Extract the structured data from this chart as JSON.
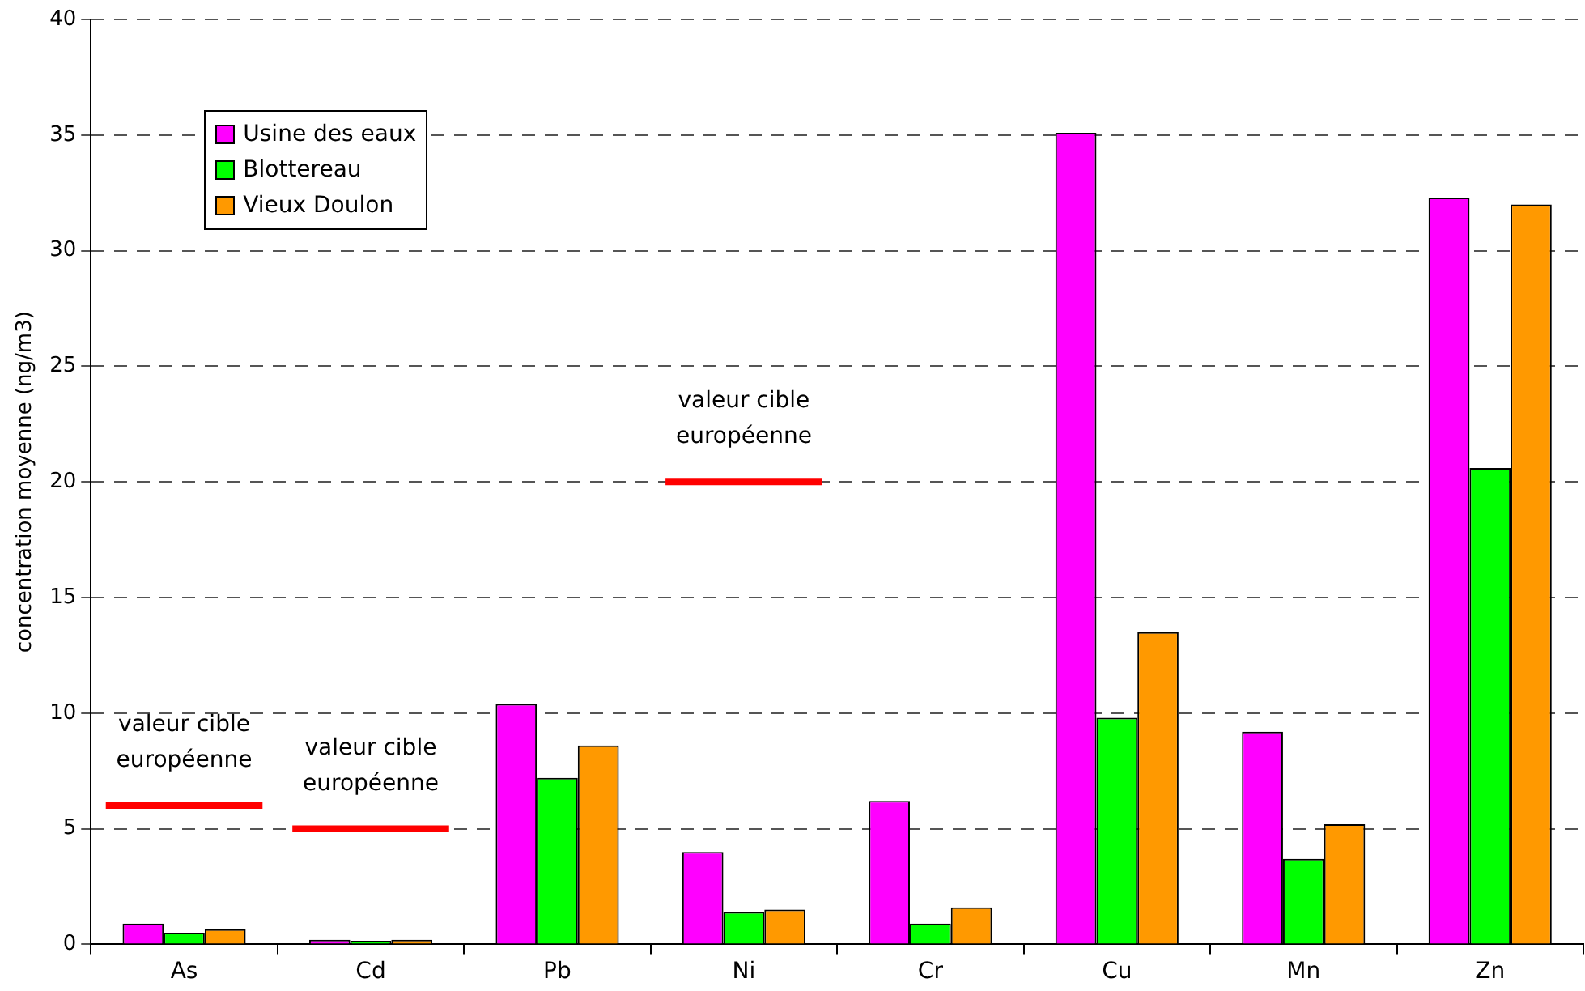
{
  "chart_data": {
    "type": "bar",
    "ylabel": "concentration moyenne (ng/m3)",
    "categories": [
      "As",
      "Cd",
      "Pb",
      "Ni",
      "Cr",
      "Cu",
      "Mn",
      "Zn"
    ],
    "series": [
      {
        "name": "Usine des eaux",
        "color": "#ff00ff",
        "values": [
          0.9,
          0.2,
          10.4,
          4.0,
          6.2,
          35.1,
          9.2,
          32.3
        ]
      },
      {
        "name": "Blottereau",
        "color": "#00ff00",
        "values": [
          0.5,
          0.15,
          7.2,
          1.4,
          0.9,
          9.8,
          3.7,
          20.6
        ]
      },
      {
        "name": "Vieux Doulon",
        "color": "#ff9900",
        "values": [
          0.65,
          0.2,
          8.6,
          1.5,
          1.6,
          13.5,
          5.2,
          32.0
        ]
      }
    ],
    "ylim": [
      0,
      40
    ],
    "yticks": [
      0,
      5,
      10,
      15,
      20,
      25,
      30,
      35,
      40
    ],
    "grid": "y",
    "legend": "top left",
    "ref_lines": [
      {
        "axis": "y",
        "value": 6,
        "color": "#ff0000"
      },
      {
        "axis": "y",
        "value": 5,
        "color": "#ff0000"
      },
      {
        "axis": "y",
        "value": 20,
        "color": "#ff0000"
      }
    ],
    "annotations": [
      {
        "text": "valeur cible\neuropéenne",
        "x": "As",
        "y": 6
      },
      {
        "text": "valeur cible\neuropéenne",
        "x": "Cd",
        "y": 5
      },
      {
        "text": "valeur cible\neuropéenne",
        "x": "Ni",
        "y": 20
      }
    ]
  }
}
